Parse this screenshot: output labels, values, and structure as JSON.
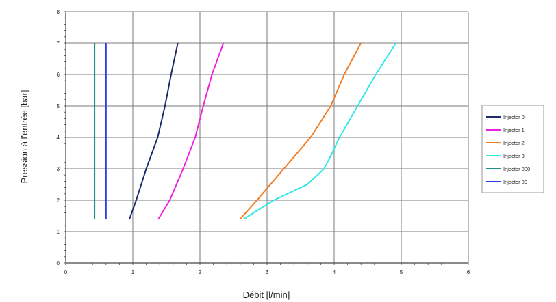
{
  "chart_data": {
    "type": "line",
    "xlabel": "Débit [l/min]",
    "ylabel": "Pression à l'entrée [bar]",
    "xlim": [
      0,
      6
    ],
    "ylim": [
      0,
      8
    ],
    "xticks": [
      "0",
      "1",
      "2",
      "3",
      "4",
      "5",
      "6"
    ],
    "yticks": [
      "0",
      "1",
      "2",
      "3",
      "4",
      "5",
      "6",
      "7",
      "8"
    ],
    "grid": true,
    "legend_position": "right",
    "series": [
      {
        "name": "Injector 0",
        "color": "#1f2a6b",
        "points": [
          [
            0.95,
            1.4
          ],
          [
            1.05,
            2.0
          ],
          [
            1.2,
            3.0
          ],
          [
            1.37,
            4.0
          ],
          [
            1.48,
            5.0
          ],
          [
            1.57,
            6.0
          ],
          [
            1.67,
            7.0
          ]
        ]
      },
      {
        "name": "Injector 1",
        "color": "#ee22dd",
        "points": [
          [
            1.38,
            1.4
          ],
          [
            1.55,
            2.0
          ],
          [
            1.75,
            3.0
          ],
          [
            1.93,
            4.0
          ],
          [
            2.05,
            5.0
          ],
          [
            2.18,
            6.0
          ],
          [
            2.35,
            7.0
          ]
        ]
      },
      {
        "name": "Injector 2",
        "color": "#f07b22",
        "points": [
          [
            2.6,
            1.4
          ],
          [
            2.85,
            2.0
          ],
          [
            3.25,
            3.0
          ],
          [
            3.65,
            4.0
          ],
          [
            3.95,
            5.0
          ],
          [
            4.15,
            6.0
          ],
          [
            4.4,
            7.0
          ]
        ]
      },
      {
        "name": "Injector 3",
        "color": "#33e6e8",
        "points": [
          [
            2.65,
            1.4
          ],
          [
            3.1,
            2.0
          ],
          [
            3.6,
            2.5
          ],
          [
            3.85,
            3.0
          ],
          [
            3.97,
            3.5
          ],
          [
            4.08,
            4.0
          ],
          [
            4.35,
            5.0
          ],
          [
            4.62,
            6.0
          ],
          [
            4.92,
            7.0
          ]
        ]
      },
      {
        "name": "Injector 000",
        "color": "#1f8f8a",
        "points": [
          [
            0.43,
            1.4
          ],
          [
            0.43,
            7.0
          ]
        ]
      },
      {
        "name": "Injector 00",
        "color": "#2a3ae0",
        "points": [
          [
            0.6,
            1.4
          ],
          [
            0.6,
            7.0
          ]
        ]
      }
    ]
  }
}
